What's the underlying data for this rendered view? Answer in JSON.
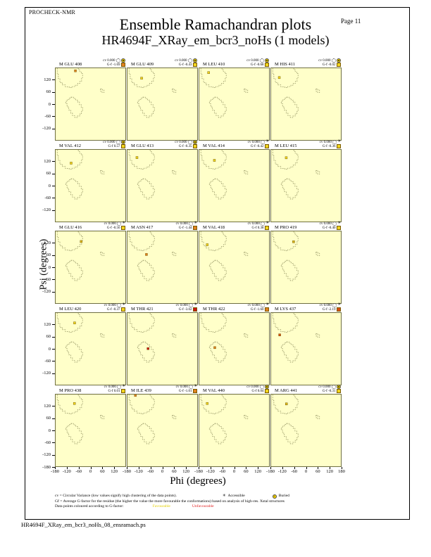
{
  "page": {
    "app_label": "PROCHECK-NMR",
    "page_number": "Page 11",
    "title": "Ensemble Ramachandran plots",
    "subtitle": "HR4694F_XRay_em_bcr3_noHs (1 models)",
    "footer_filename": "HR4694F_XRay_em_bcr3_noHs_08_ensramach.ps"
  },
  "axes": {
    "xlabel": "Phi (degrees)",
    "ylabel": "Psi (degrees)",
    "y_ticks": [
      120,
      60,
      0,
      -60,
      -120
    ],
    "y_bottom_tick": -180,
    "x_ticks": [
      -180,
      -120,
      -60,
      0,
      60,
      120
    ],
    "x_last_tick": 180
  },
  "legend": {
    "line1": "cv = Circular Variance (low values signify high clustering of the data points).",
    "accessible_label": "Accessible",
    "buried_label": "Buried",
    "line2": "Gf = Average G-factor for the residue (the higher the value the more favourable the conformations) based on analysis of high-res. Xstal structures",
    "line3": "Data points coloured according to G-factor:",
    "favourable_label": "Favourable",
    "unfavourable_label": "Unfavourable"
  },
  "colors": {
    "yellow": "#f0d41e",
    "darkyellow": "#d9b51a",
    "orange": "#e0811f",
    "orangered": "#d84e10",
    "red": "#cc1411",
    "point_edge": "#6b5200",
    "plot_bg": "#ffffc9",
    "region_stroke": "#8f8f5f",
    "favourable_text": "#e3cf00",
    "unfavourable_text": "#e02020"
  },
  "chart_data": {
    "type": "scatter",
    "grid": {
      "rows": 5,
      "cols": 4
    },
    "xlim": [
      -180,
      180
    ],
    "ylim": [
      -180,
      180
    ],
    "cv_prefix": "cv",
    "gf_prefix": "G-f",
    "subplots": [
      {
        "residue": "M GLU 408",
        "cv": "0.000",
        "gf": "-1.69",
        "gf_color": "orange",
        "burial": "buried",
        "point": {
          "phi": -78,
          "psi": 167,
          "color": "orange"
        }
      },
      {
        "residue": "M GLU 409",
        "cv": "0.000",
        "gf": "-0.43",
        "gf_color": "yellow",
        "burial": "buried",
        "point": {
          "phi": -107,
          "psi": 130,
          "color": "yellow"
        }
      },
      {
        "residue": "M LEU 410",
        "cv": "0.000",
        "gf": "-0.68",
        "gf_color": "yellow",
        "burial": "buried",
        "point": {
          "phi": -132,
          "psi": 158,
          "color": "yellow"
        }
      },
      {
        "residue": "M HIS 411",
        "cv": "0.000",
        "gf": "-0.02",
        "gf_color": "yellow",
        "burial": "buried",
        "point": {
          "phi": -138,
          "psi": 133,
          "color": "yellow"
        }
      },
      {
        "residue": "M VAL 412",
        "cv": "0.000",
        "gf": "0.57",
        "gf_color": "yellow",
        "burial": "buried",
        "point": {
          "phi": -100,
          "psi": 113,
          "color": "yellow"
        }
      },
      {
        "residue": "M GLU 413",
        "cv": "0.000",
        "gf": "-0.35",
        "gf_color": "yellow",
        "burial": "buried",
        "point": {
          "phi": -131,
          "psi": 141,
          "color": "yellow"
        }
      },
      {
        "residue": "M VAL 414",
        "cv": "0.000",
        "gf": "-0.42",
        "gf_color": "yellow",
        "burial": "accessible",
        "point": {
          "phi": -102,
          "psi": 127,
          "color": "yellow"
        }
      },
      {
        "residue": "M LEU 415",
        "cv": "0.000",
        "gf": "-0.36",
        "gf_color": "yellow",
        "burial": "accessible",
        "point": {
          "phi": -102,
          "psi": 140,
          "color": "yellow"
        }
      },
      {
        "residue": "M GLU 416",
        "cv": "0.000",
        "gf": "-0.56",
        "gf_color": "yellow",
        "burial": "accessible",
        "point": {
          "phi": -48,
          "psi": 129,
          "color": "darkyellow"
        }
      },
      {
        "residue": "M ASN 417",
        "cv": "0.000",
        "gf": "-1.44",
        "gf_color": "orange",
        "burial": "accessible",
        "point": {
          "phi": -82,
          "psi": 64,
          "color": "orange"
        }
      },
      {
        "residue": "M VAL 418",
        "cv": "0.000",
        "gf": "0.38",
        "gf_color": "yellow",
        "burial": "accessible",
        "point": {
          "phi": -139,
          "psi": 113,
          "color": "yellow"
        }
      },
      {
        "residue": "M PRO 419",
        "cv": "0.000",
        "gf": "-0.40",
        "gf_color": "yellow",
        "burial": "accessible",
        "point": {
          "phi": -64,
          "psi": 128,
          "color": "darkyellow"
        }
      },
      {
        "residue": "M LEU 420",
        "cv": "0.000",
        "gf": "-0.37",
        "gf_color": "yellow",
        "burial": "accessible",
        "point": {
          "phi": -82,
          "psi": 130,
          "color": "yellow"
        }
      },
      {
        "residue": "M THR 421",
        "cv": "0.000",
        "gf": "-3.02",
        "gf_color": "red",
        "burial": "accessible",
        "point": {
          "phi": -74,
          "psi": 1,
          "color": "red"
        }
      },
      {
        "residue": "M THR 422",
        "cv": "0.000",
        "gf": "-1.60",
        "gf_color": "orange",
        "burial": "accessible",
        "point": {
          "phi": -100,
          "psi": 6,
          "color": "orange"
        }
      },
      {
        "residue": "M LYS 437",
        "cv": "0.000",
        "gf": "-2.19",
        "gf_color": "orangered",
        "burial": "accessible",
        "point": {
          "phi": -136,
          "psi": 70,
          "color": "orangered"
        }
      },
      {
        "residue": "M PRO 438",
        "cv": "0.000",
        "gf": "0.01",
        "gf_color": "yellow",
        "burial": "accessible",
        "point": {
          "phi": -83,
          "psi": 135,
          "color": "yellow"
        }
      },
      {
        "residue": "M ILE 439",
        "cv": "0.000",
        "gf": "-1.01",
        "gf_color": "orange",
        "burial": "accessible",
        "point": {
          "phi": -139,
          "psi": 176,
          "color": "orange"
        }
      },
      {
        "residue": "M VAL 440",
        "cv": "0.000",
        "gf": "0.04",
        "gf_color": "yellow",
        "burial": "buried",
        "point": {
          "phi": -139,
          "psi": 135,
          "color": "yellow"
        }
      },
      {
        "residue": "M ARG 441",
        "cv": "0.000",
        "gf": "-0.31",
        "gf_color": "yellow",
        "burial": "buried",
        "point": {
          "phi": -101,
          "psi": 133,
          "color": "darkyellow"
        }
      }
    ]
  }
}
